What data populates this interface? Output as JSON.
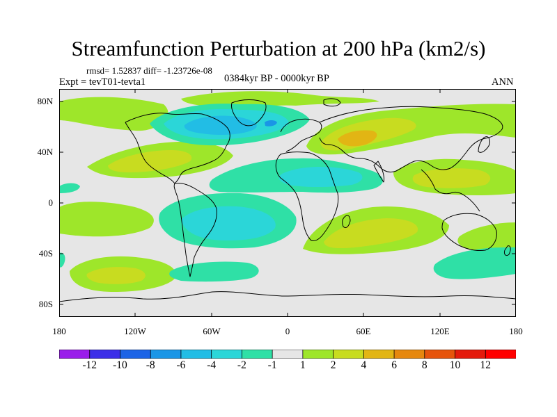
{
  "figure": {
    "title": "Streamfunction Perturbation at 200 hPa (km2/s)",
    "stats": "rmsd= 1.52837 diff= -1.23726e-08",
    "expt": "Expt = tevT01-tevta1",
    "period": "0384kyr BP - 0000kyr BP",
    "season": "ANN"
  },
  "axes": {
    "lat_labels": [
      "80N",
      "40N",
      "0",
      "40S",
      "80S"
    ],
    "lon_labels": [
      "180",
      "120W",
      "60W",
      "0",
      "60E",
      "120E",
      "180"
    ]
  },
  "colorbar": {
    "labels": [
      "-12",
      "-10",
      "-8",
      "-6",
      "-4",
      "-2",
      "-1",
      "1",
      "2",
      "4",
      "6",
      "8",
      "10",
      "12"
    ],
    "colors": [
      "#9a1dea",
      "#3c2ee8",
      "#1c64e6",
      "#1a96e6",
      "#22bde5",
      "#2bd6d8",
      "#2fe0a6",
      "#e6e6e6",
      "#9ee62a",
      "#c8dc20",
      "#e2b514",
      "#e6880e",
      "#e6540c",
      "#e41a0c",
      "#ff0000"
    ]
  },
  "field_colors": {
    "background": "#e6e6e6",
    "pos1": "#9ee62a",
    "pos2": "#c8dc20",
    "pos3": "#e2b514",
    "neg1": "#2fe0a6",
    "neg2": "#2bd6d8",
    "neg3": "#22bde5",
    "neg4": "#1a96e6"
  }
}
